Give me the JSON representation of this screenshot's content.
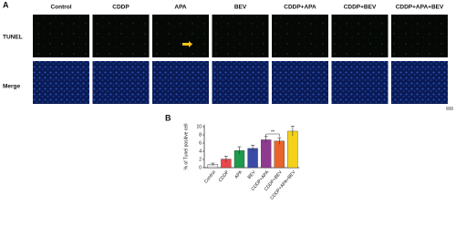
{
  "panel_a": {
    "label": "A",
    "columns": [
      "Control",
      "CDDP",
      "APA",
      "BEV",
      "CDDP+APA",
      "CDDP+BEV",
      "CDDP+APA+BEV"
    ],
    "rows": [
      "TUNEL",
      "Merge"
    ]
  },
  "chart_data": {
    "type": "bar",
    "label": "B",
    "y_label": "% of Tunel positive cell",
    "categories": [
      "Control",
      "CDDP",
      "APA",
      "BEV",
      "CDDP+APA",
      "CDDP+BEV",
      "CDDP+APA+BEV"
    ],
    "values": [
      0.8,
      2.1,
      4.2,
      4.7,
      6.8,
      6.5,
      8.9
    ],
    "errors": [
      0.3,
      0.7,
      0.9,
      0.8,
      0.8,
      0.8,
      1.2
    ],
    "colors": [
      "#e8e8e8",
      "#e8474c",
      "#1f9a4c",
      "#3b4aa6",
      "#8e3a8e",
      "#e8642a",
      "#f5d21a"
    ],
    "ylim": [
      0,
      10.5
    ],
    "yticks": [
      0,
      2,
      4,
      6,
      8,
      10
    ],
    "annotation": "**"
  }
}
